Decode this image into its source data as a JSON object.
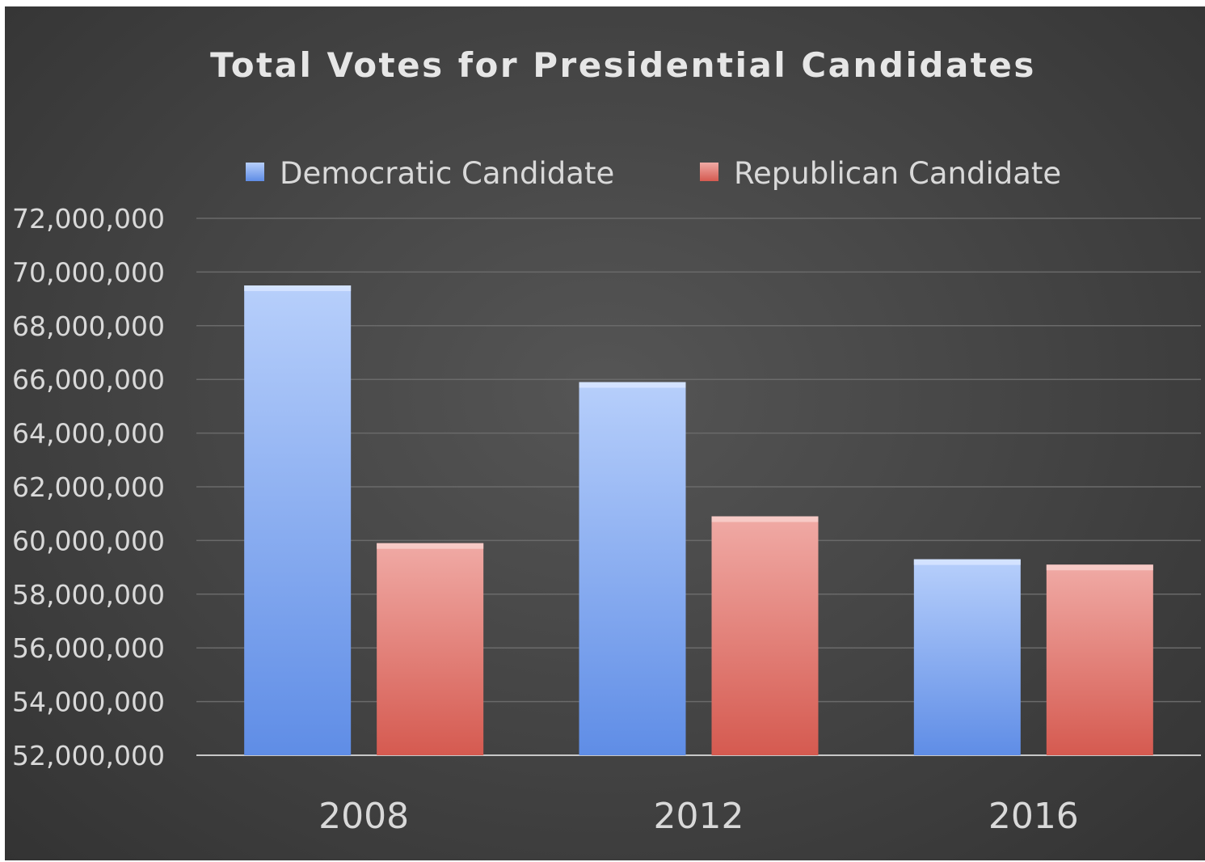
{
  "chart_data": {
    "type": "bar",
    "title": "Total Votes for Presidential Candidates",
    "categories": [
      "2008",
      "2012",
      "2016"
    ],
    "series": [
      {
        "name": "Democratic Candidate",
        "values": [
          69500000,
          65900000,
          59300000
        ],
        "color": "#7aa3ee"
      },
      {
        "name": "Republican Candidate",
        "values": [
          59900000,
          60900000,
          59100000
        ],
        "color": "#e27a72"
      }
    ],
    "ylim": [
      52000000,
      72000000
    ],
    "yticks": [
      "52,000,000",
      "54,000,000",
      "56,000,000",
      "58,000,000",
      "60,000,000",
      "62,000,000",
      "64,000,000",
      "66,000,000",
      "68,000,000",
      "70,000,000",
      "72,000,000"
    ],
    "xlabel": "",
    "ylabel": "",
    "grid": true,
    "legend_position": "top"
  }
}
